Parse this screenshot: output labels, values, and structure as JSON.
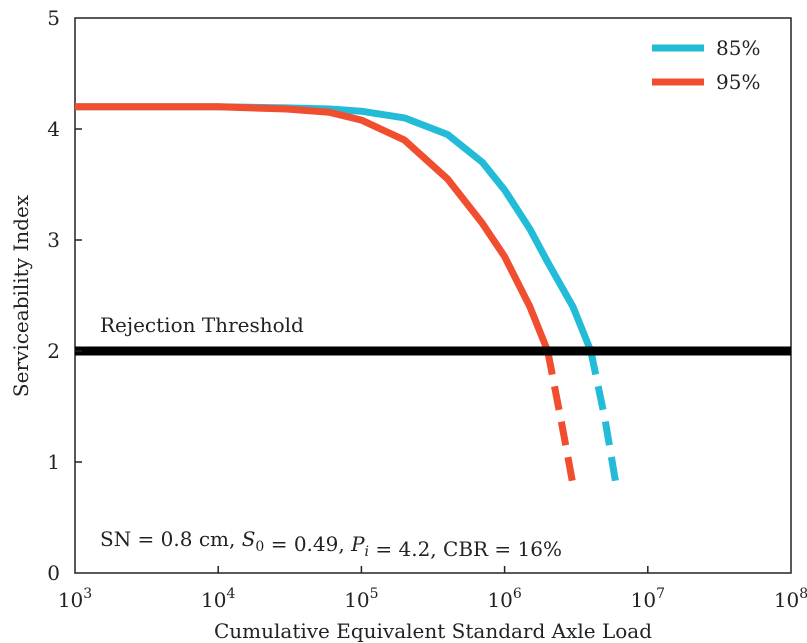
{
  "chart_data": {
    "type": "line",
    "xlabel": "Cumulative Equivalent Standard Axle Load",
    "ylabel": "Serviceability Index",
    "xscale": "log",
    "xlim": [
      1000,
      100000000
    ],
    "ylim": [
      0,
      5
    ],
    "x_tick_labels": [
      {
        "base": "10",
        "exp": "3",
        "value": 1000
      },
      {
        "base": "10",
        "exp": "4",
        "value": 10000
      },
      {
        "base": "10",
        "exp": "5",
        "value": 100000
      },
      {
        "base": "10",
        "exp": "6",
        "value": 1000000
      },
      {
        "base": "10",
        "exp": "7",
        "value": 10000000
      },
      {
        "base": "10",
        "exp": "8",
        "value": 100000000
      }
    ],
    "y_ticks": [
      "0",
      "1",
      "2",
      "3",
      "4",
      "5"
    ],
    "grid": false,
    "legend_position": "top-right",
    "series": [
      {
        "name": "85%",
        "color": "#22bcd8",
        "solid": [
          [
            1000,
            4.2
          ],
          [
            10000,
            4.2
          ],
          [
            30000,
            4.19
          ],
          [
            60000,
            4.18
          ],
          [
            100000,
            4.16
          ],
          [
            200000,
            4.1
          ],
          [
            400000,
            3.95
          ],
          [
            700000,
            3.7
          ],
          [
            1000000,
            3.45
          ],
          [
            1500000,
            3.1
          ],
          [
            2000000,
            2.8
          ],
          [
            3000000,
            2.4
          ],
          [
            4000000,
            2.0
          ]
        ],
        "dashed": [
          [
            4000000,
            2.0
          ],
          [
            5000000,
            1.4
          ],
          [
            6000000,
            0.8
          ]
        ]
      },
      {
        "name": "95%",
        "color": "#f04e2e",
        "solid": [
          [
            1000,
            4.2
          ],
          [
            10000,
            4.2
          ],
          [
            30000,
            4.18
          ],
          [
            60000,
            4.15
          ],
          [
            100000,
            4.08
          ],
          [
            200000,
            3.9
          ],
          [
            400000,
            3.55
          ],
          [
            700000,
            3.15
          ],
          [
            1000000,
            2.85
          ],
          [
            1500000,
            2.4
          ],
          [
            2000000,
            2.0
          ]
        ],
        "dashed": [
          [
            2000000,
            2.0
          ],
          [
            2500000,
            1.35
          ],
          [
            3000000,
            0.8
          ]
        ]
      }
    ],
    "threshold": {
      "value": 2,
      "label": "Rejection Threshold",
      "color": "#000000"
    },
    "annotation": {
      "parts": [
        {
          "t": "SN = 0.8 cm, "
        },
        {
          "t": "S",
          "style": "italic"
        },
        {
          "t": "0",
          "style": "sub"
        },
        {
          "t": " = 0.49, "
        },
        {
          "t": "P",
          "style": "italic"
        },
        {
          "t": "i",
          "style": "sub-italic"
        },
        {
          "t": " = 4.2, CBR = 16%"
        }
      ]
    }
  }
}
